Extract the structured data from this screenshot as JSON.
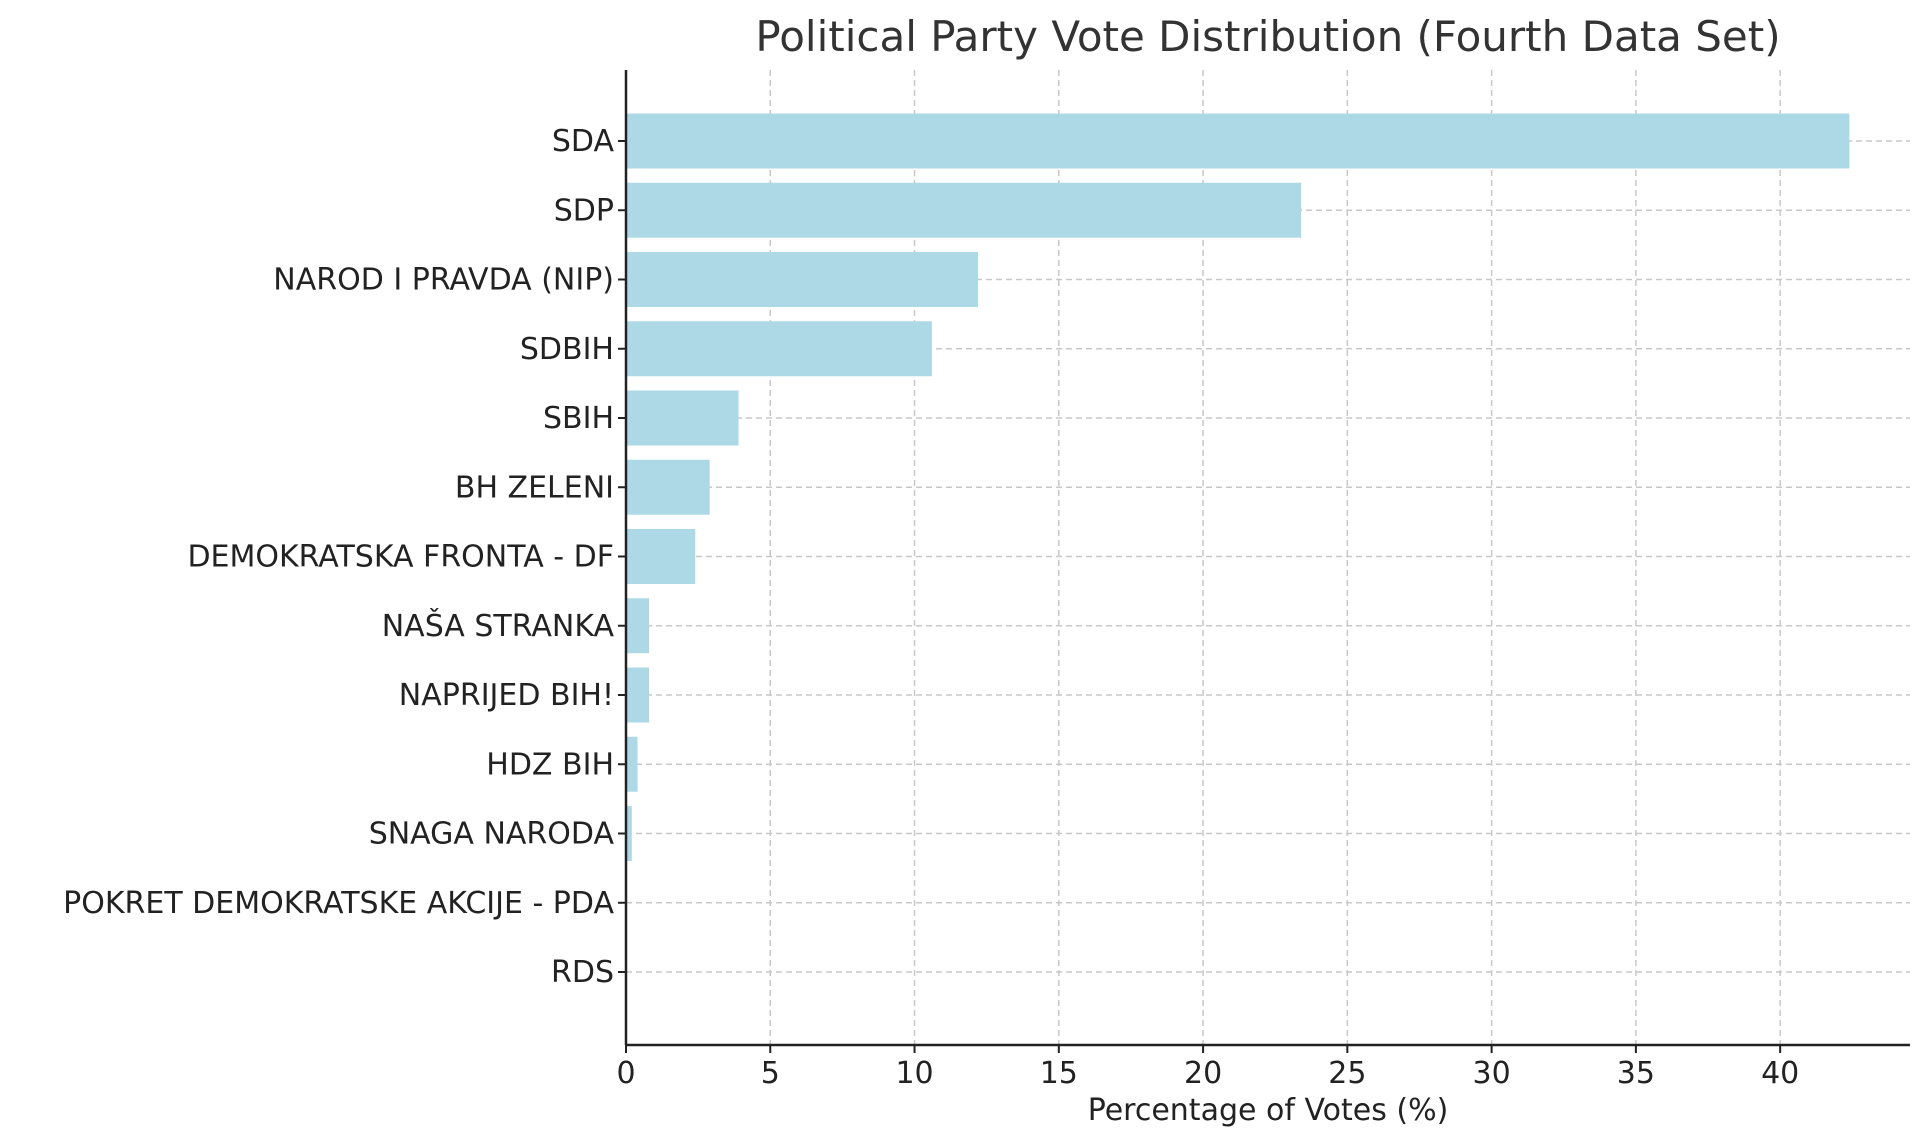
{
  "chart_data": {
    "type": "bar",
    "orientation": "horizontal",
    "title": "Political Party Vote Distribution (Fourth Data Set)",
    "xlabel": "Percentage of Votes (%)",
    "ylabel": "",
    "categories": [
      "SDA",
      "SDP",
      "NAROD I PRAVDA (NIP)",
      "SDBIH",
      "SBIH",
      "BH ZELENI",
      "DEMOKRATSKA FRONTA - DF",
      "NAŠA STRANKA",
      "NAPRIJED BIH!",
      "HDZ BIH",
      "SNAGA NARODA",
      "POKRET DEMOKRATSKE AKCIJE - PDA",
      "RDS"
    ],
    "values": [
      42.4,
      23.4,
      12.2,
      10.6,
      3.9,
      2.9,
      2.4,
      0.8,
      0.8,
      0.4,
      0.2,
      0.0,
      0.0
    ],
    "xlim": [
      0,
      44.5
    ],
    "xticks": [
      0,
      5,
      10,
      15,
      20,
      25,
      30,
      35,
      40
    ],
    "grid": true,
    "colors": {
      "bar": "#add8e6",
      "grid": "#c8c8c8",
      "axis": "#222222",
      "title": "#333333",
      "text": "#222222"
    }
  }
}
